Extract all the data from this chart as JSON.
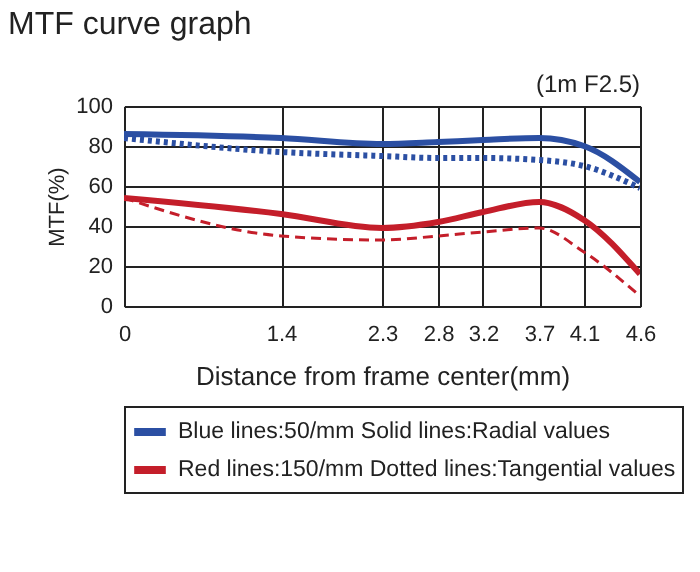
{
  "chart_data": {
    "type": "line",
    "title": "MTF curve graph",
    "annotations": [
      "(1m F2.5)"
    ],
    "xlabel": "Distance from frame center(mm)",
    "ylabel": "MTF(%)",
    "x": [
      0,
      1.4,
      2.3,
      2.8,
      3.2,
      3.7,
      4.1,
      4.6
    ],
    "xlim": [
      0,
      4.6
    ],
    "xticks": [
      0,
      1.4,
      2.3,
      2.8,
      3.2,
      3.7,
      4.1,
      4.6
    ],
    "ylim": [
      0,
      100
    ],
    "yticks": [
      0,
      20,
      40,
      60,
      80,
      100
    ],
    "grid": true,
    "legend": "bottom",
    "series": [
      {
        "name": "Blue lines:50/mm  Solid lines:Radial values",
        "color": "#2b4fa3",
        "line_style": "solid",
        "values": [
          86,
          84,
          81,
          82,
          83,
          84,
          80,
          62
        ]
      },
      {
        "color": "#2b4fa3",
        "line_style": "dotted",
        "values": [
          84,
          77,
          75,
          74,
          74,
          73,
          70,
          59
        ]
      },
      {
        "name": "Red lines:150/mm Dotted lines:Tangential values",
        "color": "#c41e2a",
        "line_style": "solid",
        "values": [
          54,
          46,
          39,
          42,
          47,
          52,
          43,
          16
        ]
      },
      {
        "color": "#c41e2a",
        "line_style": "dashed",
        "values": [
          54,
          35,
          33,
          35,
          37,
          39,
          27,
          5
        ]
      }
    ]
  }
}
